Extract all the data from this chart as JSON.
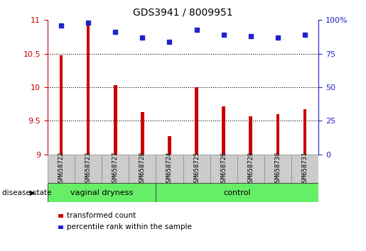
{
  "title": "GDS3941 / 8009951",
  "samples": [
    "GSM658722",
    "GSM658723",
    "GSM658727",
    "GSM658728",
    "GSM658724",
    "GSM658725",
    "GSM658726",
    "GSM658729",
    "GSM658730",
    "GSM658731"
  ],
  "red_values": [
    10.48,
    10.97,
    10.03,
    9.63,
    9.27,
    10.0,
    9.72,
    9.57,
    9.6,
    9.67
  ],
  "blue_values": [
    96,
    98,
    91,
    87,
    84,
    93,
    89,
    88,
    87,
    89
  ],
  "group_boundary": 4,
  "ylim_left": [
    9.0,
    11.0
  ],
  "ylim_right": [
    0,
    100
  ],
  "yticks_left": [
    9.0,
    9.5,
    10.0,
    10.5,
    11.0
  ],
  "ytick_labels_left": [
    "9",
    "9.5",
    "10",
    "10.5",
    "11"
  ],
  "yticks_right": [
    0,
    25,
    50,
    75,
    100
  ],
  "ytick_labels_right": [
    "0",
    "25",
    "50",
    "75",
    "100%"
  ],
  "bar_color": "#CC0000",
  "dot_color": "#2222CC",
  "label_color_left": "#CC0000",
  "label_color_right": "#2222CC",
  "legend_labels": [
    "transformed count",
    "percentile rank within the sample"
  ],
  "group_labels": [
    "vaginal dryness",
    "control"
  ],
  "group_label": "disease state",
  "group_bg_color": "#66EE66",
  "tick_bg_color": "#CCCCCC",
  "figure_bg": "#FFFFFF",
  "dotted_lines": [
    9.5,
    10.0,
    10.5
  ]
}
